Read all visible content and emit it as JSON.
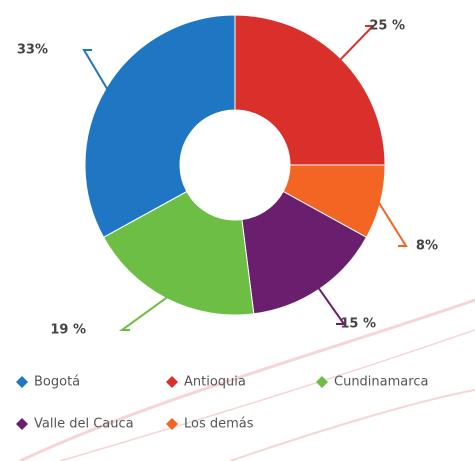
{
  "chart_data": {
    "type": "donut",
    "categories": [
      "Antioquia",
      "Los demás",
      "Valle del Cauca",
      "Cundinamarca",
      "Bogotá"
    ],
    "values": [
      25,
      8,
      15,
      19,
      33
    ],
    "value_labels": [
      "25 %",
      "8%",
      "15 %",
      "19 %",
      "33%"
    ],
    "colors": [
      "#d9302c",
      "#f26522",
      "#6a1f6e",
      "#6dbe45",
      "#1f77c3"
    ],
    "legend": true
  }
}
